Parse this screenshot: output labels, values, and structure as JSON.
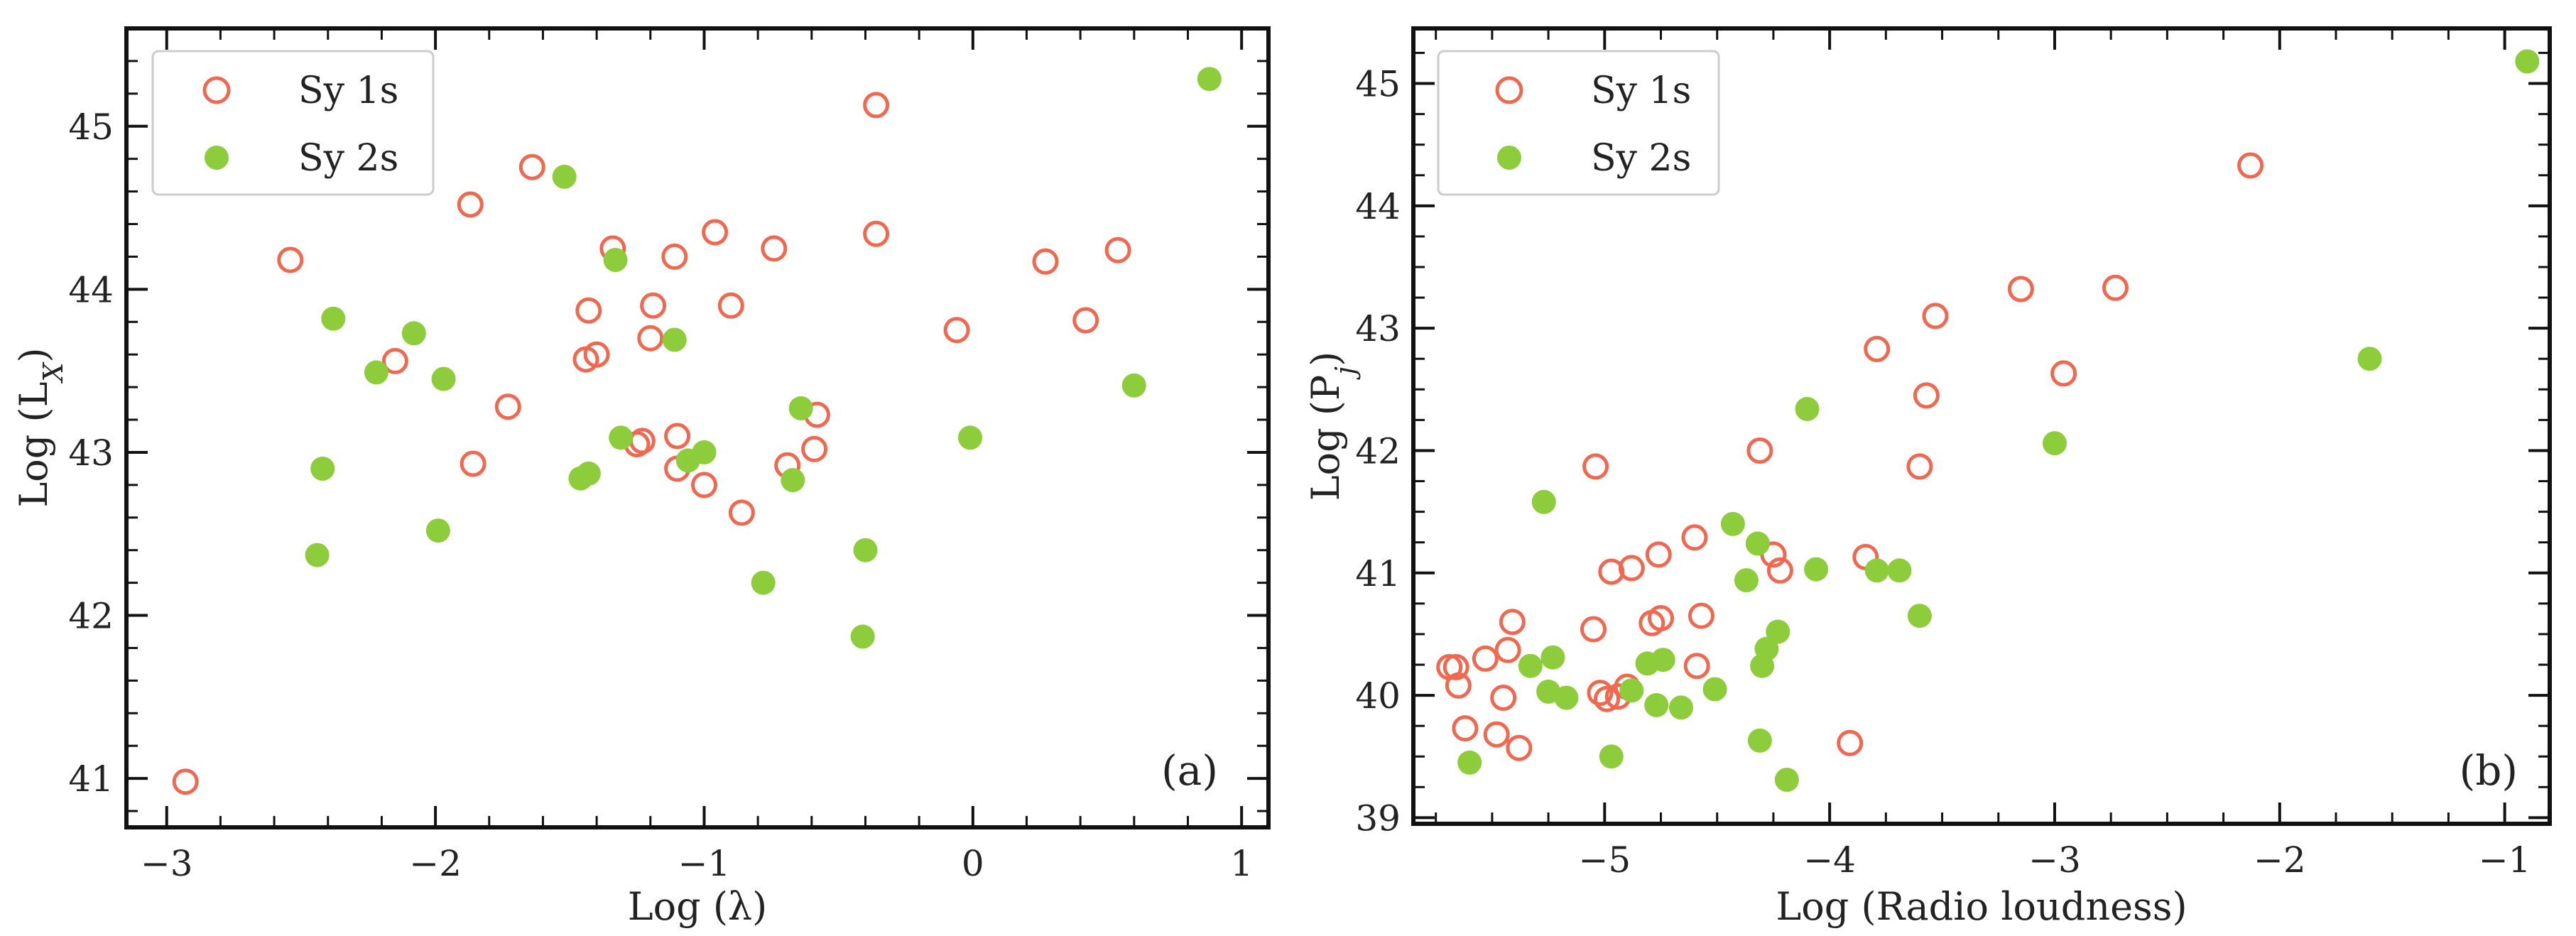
{
  "colors": {
    "sy1": "#f0684f",
    "sy2": "#8dcc3a",
    "axis": "#111111",
    "text": "#222222"
  },
  "chart_data": [
    {
      "type": "scatter",
      "panel_label": "(a)",
      "xlabel": "Log (λ)",
      "ylabel": "Log (L",
      "ylabel_sub": "X",
      "ylabel_close": ")",
      "xlim": [
        -3.15,
        1.1
      ],
      "ylim": [
        40.7,
        45.6
      ],
      "xticks": [
        -3,
        -2,
        -1,
        0,
        1
      ],
      "yticks": [
        41,
        42,
        43,
        44,
        45
      ],
      "xtick_labels": [
        "−3",
        "−2",
        "−1",
        "0",
        "1"
      ],
      "ytick_labels": [
        "41",
        "42",
        "43",
        "44",
        "45"
      ],
      "legend": {
        "location": "top-left",
        "entries": [
          "Sy 1s",
          "Sy 2s"
        ]
      },
      "series": [
        {
          "name": "Sy 1s",
          "marker": "open-circle",
          "points": [
            [
              -2.93,
              40.98
            ],
            [
              -2.54,
              44.18
            ],
            [
              -2.15,
              43.56
            ],
            [
              -1.87,
              44.52
            ],
            [
              -1.86,
              42.93
            ],
            [
              -1.73,
              43.28
            ],
            [
              -1.64,
              44.75
            ],
            [
              -1.44,
              43.57
            ],
            [
              -1.43,
              43.87
            ],
            [
              -1.4,
              43.6
            ],
            [
              -1.34,
              44.25
            ],
            [
              -1.25,
              43.05
            ],
            [
              -1.23,
              43.07
            ],
            [
              -1.2,
              43.7
            ],
            [
              -1.19,
              43.9
            ],
            [
              -1.11,
              44.2
            ],
            [
              -1.1,
              43.1
            ],
            [
              -1.1,
              42.9
            ],
            [
              -1.0,
              42.8
            ],
            [
              -0.96,
              44.35
            ],
            [
              -0.9,
              43.9
            ],
            [
              -0.86,
              42.63
            ],
            [
              -0.74,
              44.25
            ],
            [
              -0.69,
              42.92
            ],
            [
              -0.59,
              43.02
            ],
            [
              -0.58,
              43.23
            ],
            [
              -0.36,
              45.13
            ],
            [
              -0.36,
              44.34
            ],
            [
              -0.06,
              43.75
            ],
            [
              0.27,
              44.17
            ],
            [
              0.42,
              43.81
            ],
            [
              0.54,
              44.24
            ]
          ]
        },
        {
          "name": "Sy 2s",
          "marker": "filled-circle",
          "points": [
            [
              -2.44,
              42.37
            ],
            [
              -2.42,
              42.9
            ],
            [
              -2.38,
              43.82
            ],
            [
              -2.22,
              43.49
            ],
            [
              -2.08,
              43.73
            ],
            [
              -1.99,
              42.52
            ],
            [
              -1.97,
              43.45
            ],
            [
              -1.52,
              44.69
            ],
            [
              -1.46,
              42.84
            ],
            [
              -1.43,
              42.87
            ],
            [
              -1.33,
              44.18
            ],
            [
              -1.31,
              43.09
            ],
            [
              -1.11,
              43.69
            ],
            [
              -1.06,
              42.95
            ],
            [
              -1.0,
              43.0
            ],
            [
              -0.78,
              42.2
            ],
            [
              -0.67,
              42.83
            ],
            [
              -0.64,
              43.27
            ],
            [
              -0.41,
              41.87
            ],
            [
              -0.4,
              42.4
            ],
            [
              -0.01,
              43.09
            ],
            [
              0.6,
              43.41
            ],
            [
              0.88,
              45.29
            ]
          ]
        }
      ]
    },
    {
      "type": "scatter",
      "panel_label": "(b)",
      "xlabel": "Log (Radio loudness)",
      "ylabel": "Log (P",
      "ylabel_sub": "j",
      "ylabel_close": ")",
      "xlim": [
        -5.85,
        -0.8
      ],
      "ylim": [
        38.95,
        45.45
      ],
      "xticks": [
        -5,
        -4,
        -3,
        -2,
        -1
      ],
      "yticks": [
        39,
        40,
        41,
        42,
        43,
        44,
        45
      ],
      "xtick_labels": [
        "−5",
        "−4",
        "−3",
        "−2",
        "−1"
      ],
      "ytick_labels": [
        "39",
        "40",
        "41",
        "42",
        "43",
        "44",
        "45"
      ],
      "legend": {
        "location": "top-left",
        "entries": [
          "Sy 1s",
          "Sy 2s"
        ]
      },
      "series": [
        {
          "name": "Sy 1s",
          "marker": "open-circle",
          "points": [
            [
              -5.69,
              40.23
            ],
            [
              -5.66,
              40.23
            ],
            [
              -5.65,
              40.08
            ],
            [
              -5.62,
              39.73
            ],
            [
              -5.53,
              40.3
            ],
            [
              -5.48,
              39.68
            ],
            [
              -5.45,
              39.98
            ],
            [
              -5.43,
              40.37
            ],
            [
              -5.41,
              40.6
            ],
            [
              -5.38,
              39.57
            ],
            [
              -5.05,
              40.54
            ],
            [
              -5.04,
              41.87
            ],
            [
              -5.02,
              40.02
            ],
            [
              -4.99,
              39.97
            ],
            [
              -4.97,
              41.01
            ],
            [
              -4.94,
              39.99
            ],
            [
              -4.9,
              40.07
            ],
            [
              -4.88,
              41.04
            ],
            [
              -4.79,
              40.59
            ],
            [
              -4.76,
              41.15
            ],
            [
              -4.75,
              40.63
            ],
            [
              -4.6,
              41.29
            ],
            [
              -4.59,
              40.24
            ],
            [
              -4.57,
              40.65
            ],
            [
              -4.31,
              42.0
            ],
            [
              -4.25,
              41.15
            ],
            [
              -4.22,
              41.02
            ],
            [
              -3.91,
              39.61
            ],
            [
              -3.84,
              41.13
            ],
            [
              -3.79,
              42.83
            ],
            [
              -3.6,
              41.87
            ],
            [
              -3.57,
              42.45
            ],
            [
              -3.53,
              43.1
            ],
            [
              -3.15,
              43.32
            ],
            [
              -2.96,
              42.63
            ],
            [
              -2.73,
              43.33
            ],
            [
              -2.13,
              44.33
            ]
          ]
        },
        {
          "name": "Sy 2s",
          "marker": "filled-circle",
          "points": [
            [
              -5.6,
              39.45
            ],
            [
              -5.33,
              40.24
            ],
            [
              -5.27,
              41.58
            ],
            [
              -5.25,
              40.03
            ],
            [
              -5.23,
              40.31
            ],
            [
              -5.17,
              39.98
            ],
            [
              -4.97,
              39.5
            ],
            [
              -4.88,
              40.04
            ],
            [
              -4.81,
              40.26
            ],
            [
              -4.77,
              39.92
            ],
            [
              -4.74,
              40.29
            ],
            [
              -4.66,
              39.9
            ],
            [
              -4.51,
              40.05
            ],
            [
              -4.43,
              41.4
            ],
            [
              -4.37,
              40.94
            ],
            [
              -4.32,
              41.24
            ],
            [
              -4.31,
              39.63
            ],
            [
              -4.3,
              40.24
            ],
            [
              -4.28,
              40.38
            ],
            [
              -4.23,
              40.52
            ],
            [
              -4.19,
              39.31
            ],
            [
              -4.1,
              42.34
            ],
            [
              -4.06,
              41.03
            ],
            [
              -3.79,
              41.02
            ],
            [
              -3.69,
              41.02
            ],
            [
              -3.6,
              40.65
            ],
            [
              -3.0,
              42.06
            ],
            [
              -1.6,
              42.75
            ],
            [
              -0.9,
              45.18
            ]
          ]
        }
      ]
    }
  ]
}
